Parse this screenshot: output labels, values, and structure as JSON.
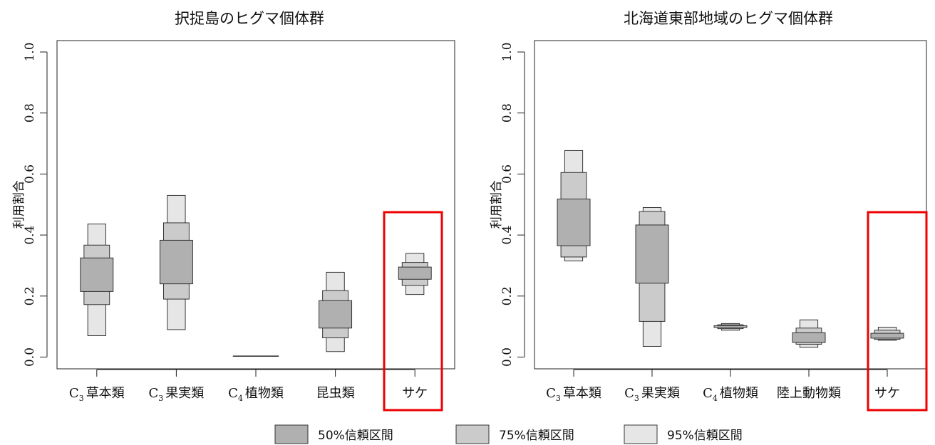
{
  "colors": {
    "ci50": "#b0b0b0",
    "ci75": "#cbcbcb",
    "ci95": "#e6e6e6",
    "highlight": "#ee0000",
    "stroke": "#222222"
  },
  "legend": [
    {
      "key": "ci50",
      "label": "50%信頼区間"
    },
    {
      "key": "ci75",
      "label": "75%信頼区間"
    },
    {
      "key": "ci95",
      "label": "95%信頼区間"
    }
  ],
  "chart_data": [
    {
      "type": "boxplot",
      "title": "択捉島のヒグマ個体群",
      "ylabel": "利用割合",
      "ylim": [
        0,
        1
      ],
      "yticks": [
        "0.0",
        "0.2",
        "0.4",
        "0.6",
        "0.8",
        "1.0"
      ],
      "highlight_index": 4,
      "categories": [
        {
          "sub": "3",
          "prefix": "C",
          "name": "草本類",
          "ci95": [
            0.07,
            0.436
          ],
          "ci75": [
            0.172,
            0.367
          ],
          "ci50": [
            0.215,
            0.325
          ]
        },
        {
          "sub": "3",
          "prefix": "C",
          "name": "果実類",
          "ci95": [
            0.09,
            0.53
          ],
          "ci75": [
            0.19,
            0.44
          ],
          "ci50": [
            0.24,
            0.383
          ]
        },
        {
          "sub": "4",
          "prefix": "C",
          "name": "植物類",
          "ci95": [
            0.003,
            0.003
          ],
          "ci75": [
            0.003,
            0.003
          ],
          "ci50": [
            0.003,
            0.003
          ]
        },
        {
          "sub": "",
          "prefix": "",
          "name": "昆虫類",
          "ci95": [
            0.018,
            0.278
          ],
          "ci75": [
            0.063,
            0.218
          ],
          "ci50": [
            0.095,
            0.185
          ]
        },
        {
          "sub": "",
          "prefix": "",
          "name": "サケ",
          "ci95": [
            0.205,
            0.34
          ],
          "ci75": [
            0.235,
            0.31
          ],
          "ci50": [
            0.255,
            0.295
          ]
        }
      ]
    },
    {
      "type": "boxplot",
      "title": "北海道東部地域のヒグマ個体群",
      "ylabel": "利用割合",
      "ylim": [
        0,
        1
      ],
      "yticks": [
        "0.0",
        "0.2",
        "0.4",
        "0.6",
        "0.8",
        "1.0"
      ],
      "highlight_index": 4,
      "categories": [
        {
          "sub": "3",
          "prefix": "C",
          "name": "草本類",
          "ci95": [
            0.315,
            0.677
          ],
          "ci75": [
            0.328,
            0.605
          ],
          "ci50": [
            0.365,
            0.518
          ]
        },
        {
          "sub": "3",
          "prefix": "C",
          "name": "果実類",
          "ci95": [
            0.035,
            0.49
          ],
          "ci75": [
            0.117,
            0.477
          ],
          "ci50": [
            0.242,
            0.433
          ]
        },
        {
          "sub": "4",
          "prefix": "C",
          "name": "植物類",
          "ci95": [
            0.088,
            0.11
          ],
          "ci75": [
            0.093,
            0.106
          ],
          "ci50": [
            0.097,
            0.103
          ]
        },
        {
          "sub": "",
          "prefix": "",
          "name": "陸上動物類",
          "ci95": [
            0.032,
            0.122
          ],
          "ci75": [
            0.042,
            0.095
          ],
          "ci50": [
            0.048,
            0.08
          ]
        },
        {
          "sub": "",
          "prefix": "",
          "name": "サケ",
          "ci95": [
            0.055,
            0.098
          ],
          "ci75": [
            0.058,
            0.088
          ],
          "ci50": [
            0.062,
            0.078
          ]
        }
      ]
    }
  ]
}
